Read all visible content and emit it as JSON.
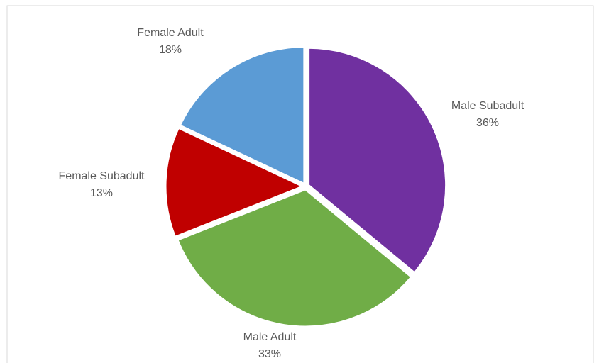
{
  "chart_data": {
    "type": "pie",
    "categories": [
      "Male Subadult",
      "Male Adult",
      "Female Subadult",
      "Female Adult"
    ],
    "values": [
      36,
      33,
      13,
      18
    ],
    "value_labels": [
      "36%",
      "33%",
      "13%",
      "18%"
    ],
    "colors": [
      "#7030a0",
      "#70ad47",
      "#c00000",
      "#5b9bd5"
    ]
  }
}
